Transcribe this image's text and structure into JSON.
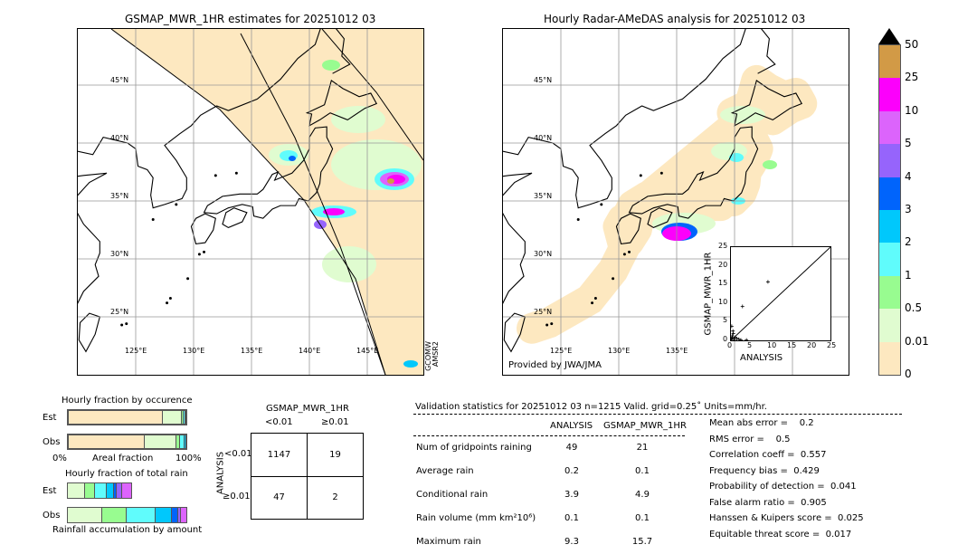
{
  "left_map": {
    "title": "GSMAP_MWR_1HR estimates for 20251012 03",
    "satellite_labels": [
      "GCOMW",
      "AMSR2"
    ]
  },
  "right_map": {
    "title": "Hourly Radar-AMeDAS analysis for 20251012 03",
    "credit": "Provided by JWA/JMA"
  },
  "lat_labels": [
    "45°N",
    "40°N",
    "35°N",
    "30°N",
    "25°N"
  ],
  "lon_labels": [
    "125°E",
    "130°E",
    "135°E",
    "140°E",
    "145°E"
  ],
  "colorbar": {
    "ticks": [
      "0",
      "0.01",
      "0.5",
      "1",
      "2",
      "3",
      "4",
      "5",
      "10",
      "25",
      "50"
    ],
    "colors": [
      "#fde8c0",
      "#e0fcd0",
      "#98fc90",
      "#60fcfc",
      "#00c8fc",
      "#0064fc",
      "#9664fc",
      "#dc64fc",
      "#fc00fc",
      "#d29a46"
    ],
    "extend_color": "#000000"
  },
  "scatter": {
    "xlabel": "ANALYSIS",
    "ylabel": "GSMAP_MWR_1HR",
    "ticks": [
      "0",
      "5",
      "10",
      "15",
      "20",
      "25"
    ],
    "range": [
      0,
      25
    ],
    "points": [
      [
        9.3,
        15.7
      ],
      [
        2.9,
        9.1
      ],
      [
        0.2,
        3.8
      ],
      [
        0.5,
        2.5
      ],
      [
        0.6,
        1.8
      ],
      [
        0.3,
        1.2
      ],
      [
        1.0,
        0.8
      ],
      [
        1.5,
        0.5
      ],
      [
        2.0,
        0.3
      ],
      [
        3.9,
        0.1
      ],
      [
        0.1,
        0.5
      ],
      [
        0.8,
        0.2
      ],
      [
        2.5,
        0.1
      ],
      [
        0.4,
        0.6
      ]
    ]
  },
  "occurrence": {
    "title": "Hourly fraction by occurence",
    "est_label": "Est",
    "obs_label": "Obs",
    "xlabel": "Areal fraction",
    "x0": "0%",
    "x1": "100%",
    "est": [
      0.805,
      0.16,
      0.015,
      0.01,
      0.01
    ],
    "obs": [
      0.645,
      0.27,
      0.035,
      0.035,
      0.015
    ]
  },
  "total_rain": {
    "title": "Hourly fraction of total rain",
    "est_label": "Est",
    "obs_label": "Obs",
    "xlabel": "Rainfall accumulation by amount",
    "est": [
      0.152,
      0.083,
      0.097,
      0.058,
      0.025,
      0.043,
      0.082
    ],
    "obs": [
      0.295,
      0.2,
      0.243,
      0.132,
      0.057,
      0.023,
      0.05
    ]
  },
  "contingency": {
    "col_title": "GSMAP_MWR_1HR",
    "col_labels": [
      "<0.01",
      "≥0.01"
    ],
    "row_title": "ANALYSIS",
    "row_labels": [
      "<0.01",
      "≥0.01"
    ],
    "cells": [
      [
        "1147",
        "19"
      ],
      [
        "47",
        "2"
      ]
    ]
  },
  "validation": {
    "header": "Validation statistics for 20251012 03  n=1215 Valid. grid=0.25˚ Units=mm/hr.",
    "columns": [
      "ANALYSIS",
      "GSMAP_MWR_1HR"
    ],
    "rows": [
      {
        "label": "Num of gridpoints raining",
        "a": "49",
        "g": "21"
      },
      {
        "label": "Average rain",
        "a": "0.2",
        "g": "0.1"
      },
      {
        "label": "Conditional rain",
        "a": "3.9",
        "g": "4.9"
      },
      {
        "label": "Rain volume (mm km²10⁶)",
        "a": "0.1",
        "g": "0.1"
      },
      {
        "label": "Maximum rain",
        "a": "9.3",
        "g": "15.7"
      }
    ],
    "scores": [
      "Mean abs error =    0.2",
      "RMS error =    0.5",
      "Correlation coeff =  0.557",
      "Frequency bias =  0.429",
      "Probability of detection =  0.041",
      "False alarm ratio =  0.905",
      "Hanssen & Kuipers score =  0.025",
      "Equitable threat score =  0.017"
    ]
  }
}
